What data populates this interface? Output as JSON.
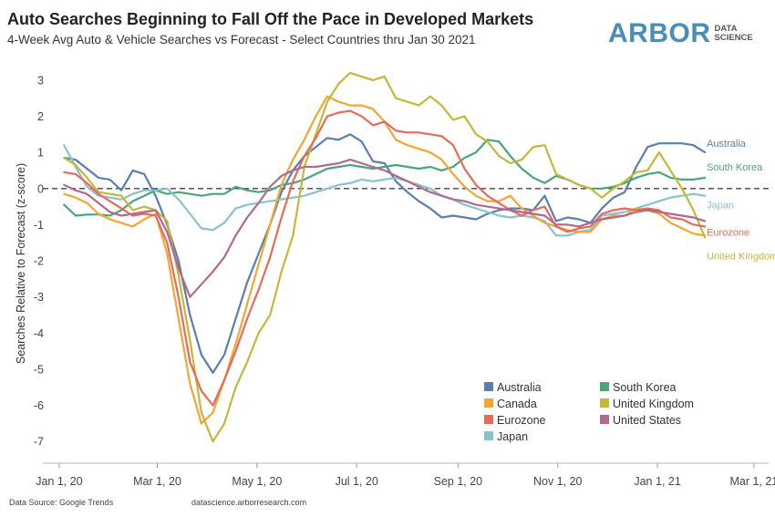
{
  "title": "Auto Searches Beginning to Fall Off the Pace in Developed Markets",
  "subtitle": "4-Week Avg Auto & Vehicle Searches vs Forecast - Select Countries thru Jan 30 2021",
  "logo": {
    "word": "ARBOR",
    "line1": "DATA",
    "line2": "SCIENCE",
    "color": "#4a8db8"
  },
  "footer": {
    "source": "Data Source: Google Trends",
    "site": "datascience.arborresearch.com"
  },
  "chart_data": {
    "type": "line",
    "title": "Auto Searches Beginning to Fall Off the Pace in Developed Markets",
    "subtitle": "4-Week Avg Auto & Vehicle Searches vs Forecast - Select Countries thru Jan 30 2021",
    "xlabel": "",
    "ylabel": "Searches Relative to Forecast (z-score)",
    "ylim": [
      -7.6,
      3.4
    ],
    "yticks": [
      -7,
      -6,
      -5,
      -4,
      -3,
      -2,
      -1,
      0,
      1,
      2,
      3
    ],
    "xlim": [
      "2019-12-22",
      "2021-03-10"
    ],
    "xticks": [
      {
        "date": "2020-01-01",
        "label": "Jan 1, 20"
      },
      {
        "date": "2020-03-01",
        "label": "Mar 1, 20"
      },
      {
        "date": "2020-05-01",
        "label": "May 1, 20"
      },
      {
        "date": "2020-07-01",
        "label": "Jul 1, 20"
      },
      {
        "date": "2020-09-01",
        "label": "Sep 1, 20"
      },
      {
        "date": "2020-11-01",
        "label": "Nov 1, 20"
      },
      {
        "date": "2021-01-01",
        "label": "Jan 1, 21"
      },
      {
        "date": "2021-03-01",
        "label": "Mar 1, 21"
      }
    ],
    "zero_line": "dashed",
    "grid": false,
    "legend_position": "bottom-right",
    "x": [
      "2020-01-04",
      "2020-01-11",
      "2020-01-18",
      "2020-01-25",
      "2020-02-01",
      "2020-02-08",
      "2020-02-15",
      "2020-02-22",
      "2020-02-29",
      "2020-03-07",
      "2020-03-14",
      "2020-03-21",
      "2020-03-28",
      "2020-04-04",
      "2020-04-11",
      "2020-04-18",
      "2020-04-25",
      "2020-05-02",
      "2020-05-09",
      "2020-05-16",
      "2020-05-23",
      "2020-05-30",
      "2020-06-06",
      "2020-06-13",
      "2020-06-20",
      "2020-06-27",
      "2020-07-04",
      "2020-07-11",
      "2020-07-18",
      "2020-07-25",
      "2020-08-01",
      "2020-08-08",
      "2020-08-15",
      "2020-08-22",
      "2020-08-29",
      "2020-09-05",
      "2020-09-12",
      "2020-09-19",
      "2020-09-26",
      "2020-10-03",
      "2020-10-10",
      "2020-10-17",
      "2020-10-24",
      "2020-10-31",
      "2020-11-07",
      "2020-11-14",
      "2020-11-21",
      "2020-11-28",
      "2020-12-05",
      "2020-12-12",
      "2020-12-19",
      "2020-12-26",
      "2021-01-02",
      "2021-01-09",
      "2021-01-16",
      "2021-01-23",
      "2021-01-30"
    ],
    "series": [
      {
        "name": "Australia",
        "color": "#5b7fad",
        "values": [
          0.85,
          0.8,
          0.55,
          0.3,
          0.25,
          -0.05,
          0.5,
          0.4,
          -0.2,
          -1.0,
          -2.0,
          -3.5,
          -4.6,
          -5.1,
          -4.6,
          -3.6,
          -2.6,
          -1.8,
          -1.0,
          -0.1,
          0.5,
          0.9,
          1.15,
          1.4,
          1.35,
          1.5,
          1.3,
          0.75,
          0.7,
          0.2,
          -0.1,
          -0.35,
          -0.55,
          -0.8,
          -0.75,
          -0.8,
          -0.85,
          -0.7,
          -0.6,
          -0.55,
          -0.55,
          -0.6,
          -0.2,
          -0.9,
          -0.8,
          -0.85,
          -0.95,
          -0.55,
          -0.25,
          -0.1,
          0.6,
          1.15,
          1.25,
          1.25,
          1.25,
          1.2,
          1.0
        ]
      },
      {
        "name": "South Korea",
        "color": "#4aa57a",
        "values": [
          -0.45,
          -0.75,
          -0.72,
          -0.72,
          -0.75,
          -0.6,
          -0.35,
          -0.2,
          -0.05,
          -0.15,
          -0.1,
          -0.15,
          -0.2,
          -0.15,
          -0.15,
          0.05,
          -0.05,
          -0.1,
          -0.05,
          0.1,
          0.15,
          0.25,
          0.4,
          0.55,
          0.6,
          0.65,
          0.6,
          0.55,
          0.6,
          0.65,
          0.6,
          0.55,
          0.6,
          0.5,
          0.6,
          0.85,
          1.0,
          1.35,
          1.3,
          0.9,
          0.55,
          0.3,
          0.15,
          0.35,
          0.25,
          0.1,
          0.0,
          0.0,
          0.05,
          0.15,
          0.3,
          0.4,
          0.45,
          0.3,
          0.25,
          0.25,
          0.3
        ]
      },
      {
        "name": "Japan",
        "color": "#88c3cb",
        "values": [
          1.2,
          0.6,
          0.05,
          -0.2,
          -0.25,
          -0.3,
          -0.15,
          -0.05,
          -0.05,
          0.0,
          -0.3,
          -0.7,
          -1.1,
          -1.15,
          -0.95,
          -0.55,
          -0.45,
          -0.4,
          -0.35,
          -0.3,
          -0.25,
          -0.2,
          -0.1,
          0.0,
          0.1,
          0.15,
          0.25,
          0.2,
          0.25,
          0.3,
          0.2,
          0.1,
          0.0,
          -0.2,
          -0.3,
          -0.45,
          -0.55,
          -0.65,
          -0.75,
          -0.8,
          -0.75,
          -0.8,
          -0.9,
          -1.3,
          -1.3,
          -1.2,
          -1.15,
          -0.75,
          -0.7,
          -0.65,
          -0.55,
          -0.45,
          -0.35,
          -0.25,
          -0.2,
          -0.15,
          -0.2
        ]
      },
      {
        "name": "Canada",
        "color": "#f4a533",
        "values": [
          -0.15,
          -0.25,
          -0.4,
          -0.7,
          -0.85,
          -0.95,
          -1.05,
          -0.85,
          -0.7,
          -1.8,
          -3.6,
          -5.4,
          -6.5,
          -6.2,
          -5.3,
          -4.3,
          -3.2,
          -2.1,
          -1.0,
          0.1,
          0.8,
          1.35,
          2.0,
          2.55,
          2.4,
          2.3,
          2.3,
          2.2,
          1.85,
          1.35,
          1.2,
          1.1,
          1.0,
          0.8,
          0.4,
          0.05,
          -0.2,
          -0.35,
          -0.35,
          -0.2,
          -0.55,
          -0.75,
          -0.95,
          -1.05,
          -1.15,
          -1.2,
          -1.2,
          -0.85,
          -0.75,
          -0.75,
          -0.55,
          -0.6,
          -0.7,
          -0.95,
          -1.1,
          -1.25,
          -1.3
        ]
      },
      {
        "name": "United Kingdom",
        "color": "#c4b83a",
        "values": [
          0.85,
          0.65,
          0.3,
          -0.1,
          -0.15,
          -0.2,
          -0.6,
          -0.5,
          -0.6,
          -0.9,
          -2.4,
          -4.2,
          -6.2,
          -7.0,
          -6.5,
          -5.5,
          -4.8,
          -4.0,
          -3.5,
          -2.3,
          -1.3,
          0.6,
          1.5,
          2.4,
          2.9,
          3.2,
          3.1,
          3.0,
          3.1,
          2.5,
          2.4,
          2.3,
          2.55,
          2.3,
          1.9,
          2.0,
          1.5,
          1.3,
          0.9,
          0.7,
          0.8,
          1.15,
          1.2,
          0.4,
          0.25,
          0.1,
          0.0,
          -0.25,
          0.0,
          0.2,
          0.45,
          0.5,
          1.0,
          0.5,
          0.0,
          -0.6,
          -1.35
        ]
      },
      {
        "name": "Eurozone",
        "color": "#e66b5a",
        "values": [
          0.45,
          0.4,
          0.15,
          -0.15,
          -0.35,
          -0.55,
          -0.75,
          -0.7,
          -0.75,
          -1.5,
          -3.0,
          -4.8,
          -5.6,
          -6.0,
          -5.3,
          -4.5,
          -3.6,
          -2.8,
          -1.9,
          -0.8,
          0.2,
          0.9,
          1.4,
          2.0,
          2.1,
          2.15,
          2.0,
          1.75,
          1.85,
          1.6,
          1.55,
          1.55,
          1.5,
          1.45,
          1.2,
          0.55,
          0.1,
          -0.2,
          -0.4,
          -0.6,
          -0.75,
          -0.6,
          -0.5,
          -1.05,
          -1.2,
          -1.1,
          -1.05,
          -0.7,
          -0.6,
          -0.55,
          -0.6,
          -0.55,
          -0.6,
          -0.8,
          -0.85,
          -1.0,
          -1.05
        ]
      },
      {
        "name": "United States",
        "color": "#b0698f",
        "values": [
          0.1,
          -0.05,
          -0.15,
          -0.4,
          -0.65,
          -0.75,
          -0.7,
          -0.65,
          -0.6,
          -1.2,
          -2.2,
          -3.0,
          -2.65,
          -2.3,
          -1.9,
          -1.3,
          -0.8,
          -0.4,
          0.05,
          0.35,
          0.5,
          0.6,
          0.6,
          0.65,
          0.7,
          0.8,
          0.7,
          0.6,
          0.5,
          0.35,
          0.2,
          0.05,
          -0.1,
          -0.2,
          -0.3,
          -0.35,
          -0.45,
          -0.5,
          -0.55,
          -0.6,
          -0.65,
          -0.7,
          -0.75,
          -1.0,
          -1.0,
          -1.05,
          -0.95,
          -0.85,
          -0.8,
          -0.75,
          -0.65,
          -0.6,
          -0.65,
          -0.7,
          -0.75,
          -0.8,
          -0.9
        ]
      }
    ],
    "end_labels": [
      {
        "series": "Australia",
        "text": "Australia"
      },
      {
        "series": "South Korea",
        "text": "South Korea"
      },
      {
        "series": "Japan",
        "text": "Japan"
      },
      {
        "series": "Eurozone",
        "text": "Eurozone"
      },
      {
        "series": "United Kingdom",
        "text": "United Kingdom"
      }
    ],
    "legend": [
      {
        "name": "Australia",
        "color": "#5b7fad"
      },
      {
        "name": "South Korea",
        "color": "#4aa57a"
      },
      {
        "name": "Canada",
        "color": "#f4a533"
      },
      {
        "name": "United Kingdom",
        "color": "#c4b83a"
      },
      {
        "name": "Eurozone",
        "color": "#e66b5a"
      },
      {
        "name": "United States",
        "color": "#b0698f"
      },
      {
        "name": "Japan",
        "color": "#88c3cb"
      }
    ]
  }
}
